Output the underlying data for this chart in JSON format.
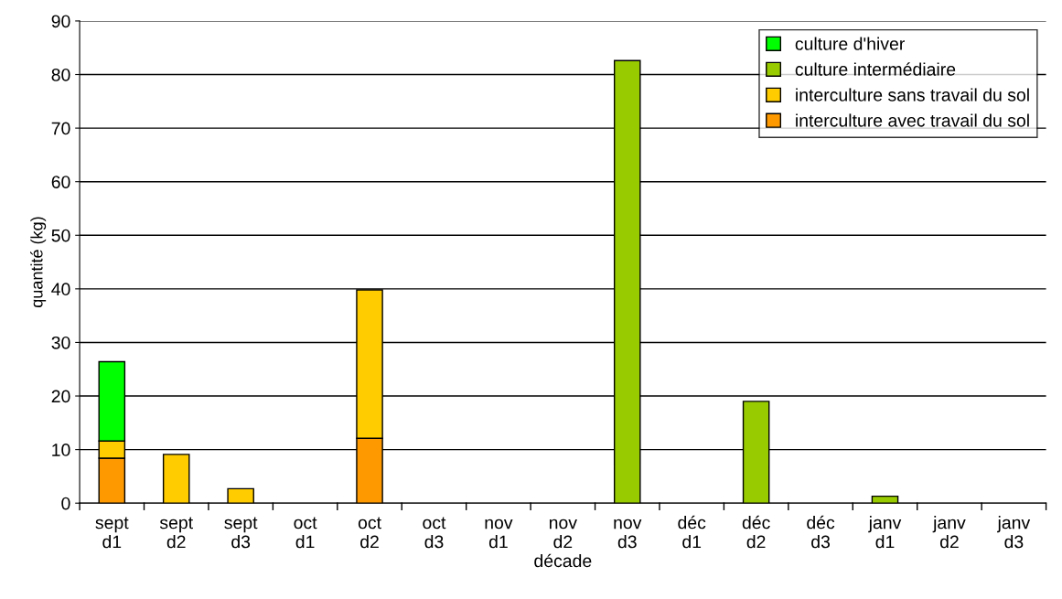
{
  "chart_data": {
    "type": "bar",
    "stacked": true,
    "xlabel": "décade",
    "ylabel": "quantité (kg)",
    "categories": [
      "sept\nd1",
      "sept\nd2",
      "sept\nd3",
      "oct\nd1",
      "oct\nd2",
      "oct\nd3",
      "nov\nd1",
      "nov\nd2",
      "nov\nd3",
      "déc\nd1",
      "déc\nd2",
      "déc\nd3",
      "janv\nd1",
      "janv\nd2",
      "janv\nd3"
    ],
    "series": [
      {
        "name": "interculture avec travail du sol",
        "color": "#ff9900",
        "values": [
          8.4,
          null,
          null,
          null,
          12.1,
          null,
          null,
          null,
          null,
          null,
          null,
          null,
          null,
          null,
          null
        ]
      },
      {
        "name": "interculture sans travail du sol",
        "color": "#ffcc00",
        "values": [
          3.2,
          9.1,
          2.7,
          null,
          27.7,
          null,
          null,
          null,
          null,
          null,
          null,
          null,
          null,
          null,
          null
        ]
      },
      {
        "name": "culture intermédiaire",
        "color": "#99cc00",
        "values": [
          null,
          null,
          null,
          null,
          null,
          null,
          null,
          null,
          82.6,
          null,
          19.0,
          null,
          1.3,
          null,
          null
        ]
      },
      {
        "name": "culture d'hiver",
        "color": "#00ff00",
        "values": [
          14.8,
          null,
          null,
          null,
          null,
          null,
          null,
          null,
          null,
          null,
          null,
          null,
          null,
          null,
          null
        ]
      }
    ],
    "ylim": [
      0,
      90
    ],
    "yticks": [
      0,
      10,
      20,
      30,
      40,
      50,
      60,
      70,
      80,
      90
    ],
    "grid": "y",
    "legend": "top right"
  }
}
